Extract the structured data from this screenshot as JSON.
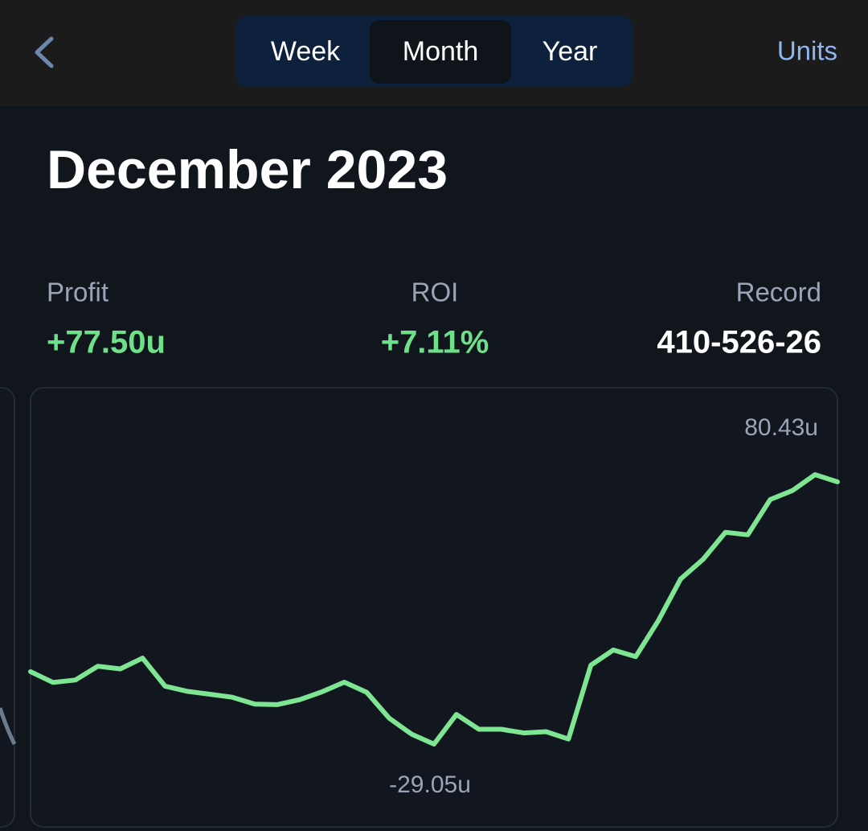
{
  "header": {
    "tabs": [
      "Week",
      "Month",
      "Year"
    ],
    "selected_index": 1,
    "action": "Units"
  },
  "title": "December 2023",
  "stats": [
    {
      "label": "Profit",
      "value": "+77.50u",
      "color": "#6fe08a"
    },
    {
      "label": "ROI",
      "value": "+7.11%",
      "color": "#6fe08a"
    },
    {
      "label": "Record",
      "value": "410-526-26",
      "color": "#ffffff"
    }
  ],
  "chart_data": {
    "type": "line",
    "color": "#7ee592",
    "values": [
      0.4,
      -4,
      -3,
      2.6,
      1.5,
      5.9,
      -5.5,
      -7.6,
      -8.8,
      -10,
      -12.8,
      -13,
      -11,
      -7.8,
      -3.9,
      -8,
      -18.5,
      -25,
      -29.05,
      -17,
      -23,
      -23,
      -24.5,
      -24,
      -27,
      3,
      9.2,
      6.5,
      21,
      38,
      46,
      57,
      56,
      70.3,
      74,
      80.43,
      77.5
    ],
    "max_label": {
      "value": 80.43,
      "label": "80.43u"
    },
    "min_label": {
      "value": -29.05,
      "label": "-29.05u"
    }
  }
}
